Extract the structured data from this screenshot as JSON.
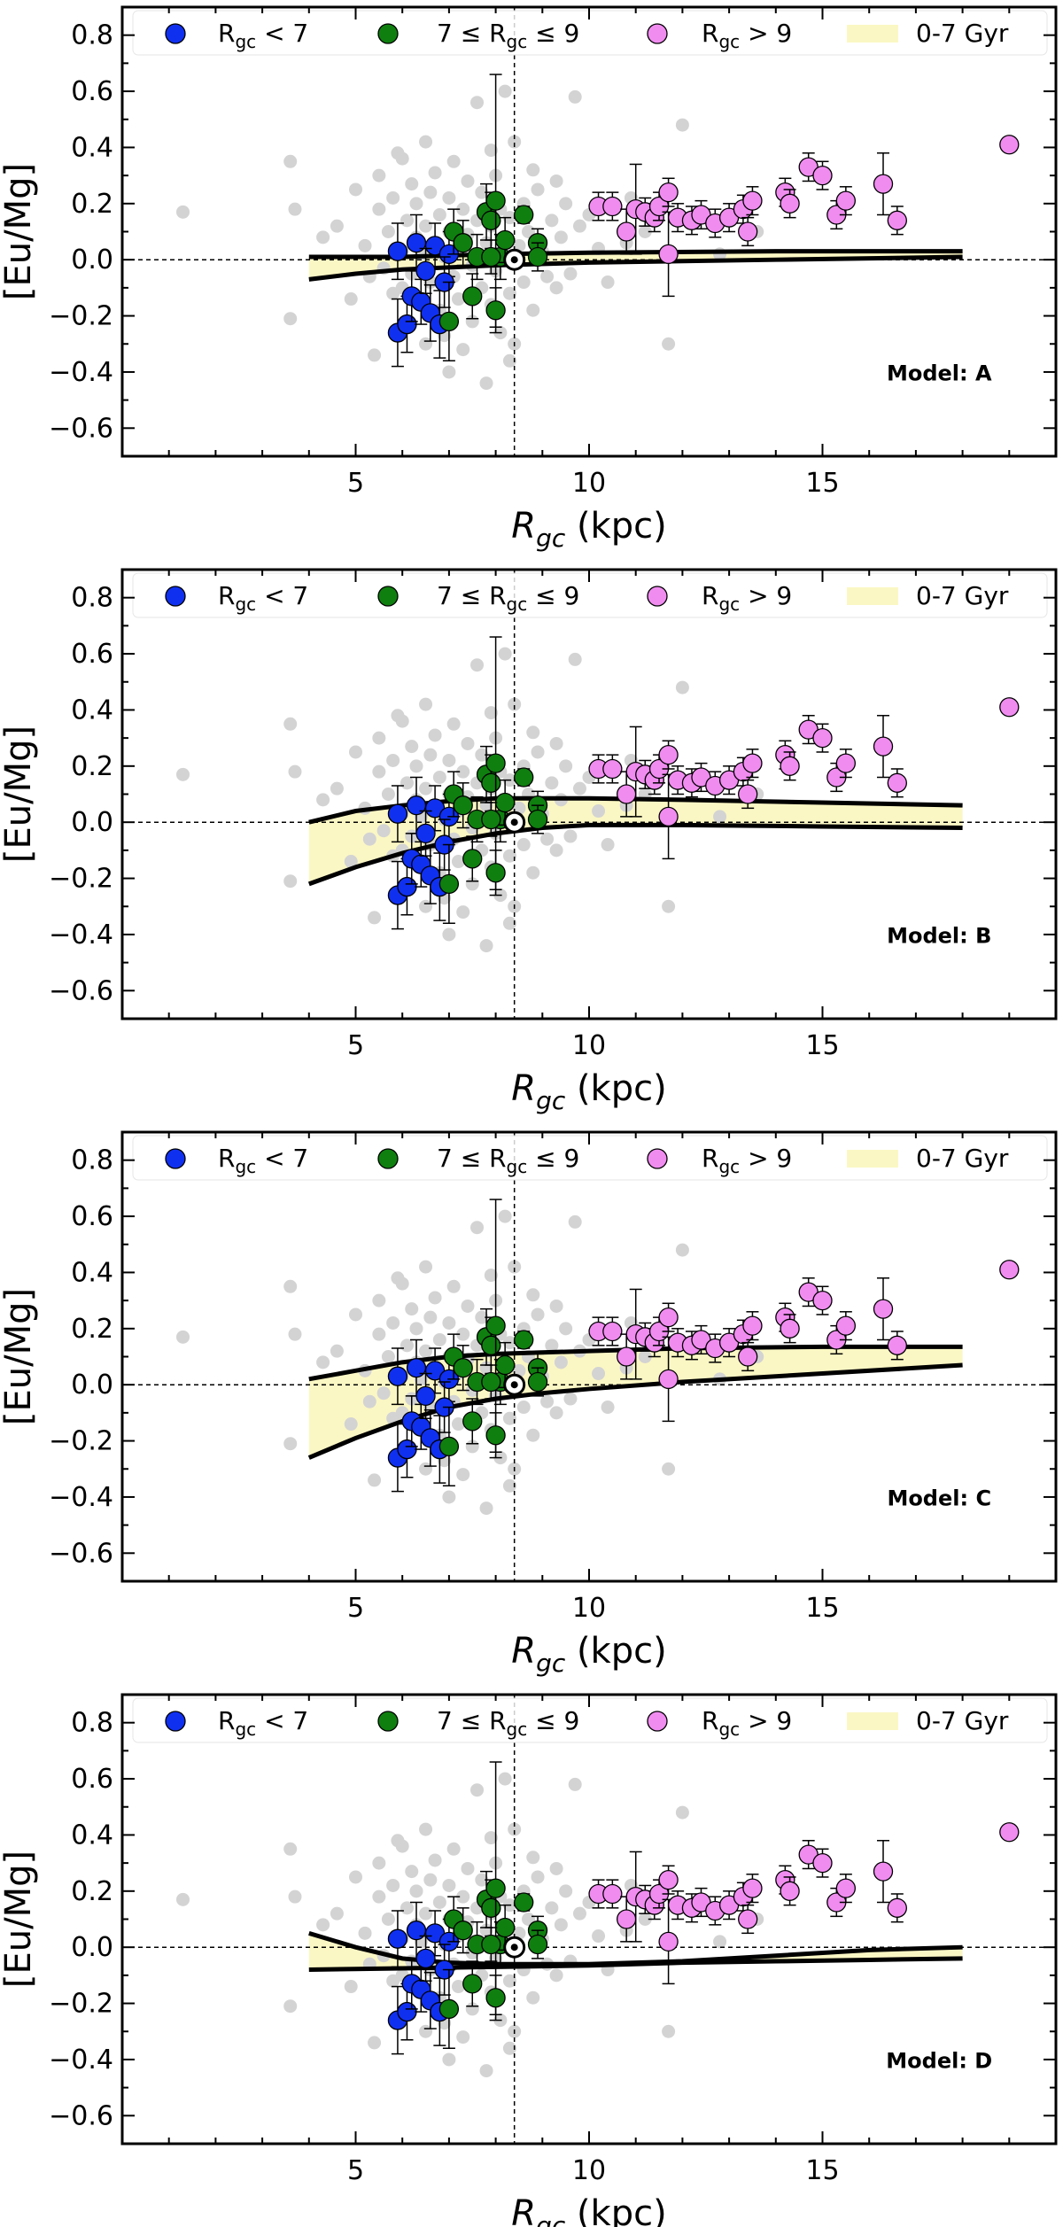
{
  "chart_data": [
    {
      "type": "scatter",
      "model": "Model: A",
      "xlabel_main": "R",
      "xlabel_sub": "gc",
      "xlabel_unit": " (kpc)",
      "ylabel": "[Eu/Mg]",
      "xlim": [
        0,
        20
      ],
      "ylim": [
        -0.7,
        0.9
      ],
      "xticks": [
        5,
        10,
        15
      ],
      "yticks": [
        -0.6,
        -0.4,
        -0.2,
        0.0,
        0.2,
        0.4,
        0.6,
        0.8
      ],
      "sun_rgc": 8.4,
      "band_upper": [
        [
          4,
          0.01
        ],
        [
          6,
          0.01
        ],
        [
          8,
          0.02
        ],
        [
          10,
          0.025
        ],
        [
          14,
          0.03
        ],
        [
          18,
          0.03
        ]
      ],
      "band_lower": [
        [
          4,
          -0.07
        ],
        [
          5,
          -0.05
        ],
        [
          6,
          -0.035
        ],
        [
          8,
          -0.02
        ],
        [
          10,
          -0.01
        ],
        [
          14,
          0.0
        ],
        [
          18,
          0.01
        ]
      ]
    },
    {
      "type": "scatter",
      "model": "Model: B",
      "xlabel_main": "R",
      "xlabel_sub": "gc",
      "xlabel_unit": " (kpc)",
      "ylabel": "[Eu/Mg]",
      "xlim": [
        0,
        20
      ],
      "ylim": [
        -0.7,
        0.9
      ],
      "xticks": [
        5,
        10,
        15
      ],
      "yticks": [
        -0.6,
        -0.4,
        -0.2,
        0.0,
        0.2,
        0.4,
        0.6,
        0.8
      ],
      "sun_rgc": 8.4,
      "band_upper": [
        [
          4,
          0.0
        ],
        [
          5,
          0.04
        ],
        [
          6,
          0.06
        ],
        [
          7,
          0.075
        ],
        [
          8,
          0.085
        ],
        [
          10,
          0.085
        ],
        [
          12,
          0.08
        ],
        [
          15,
          0.07
        ],
        [
          18,
          0.06
        ]
      ],
      "band_lower": [
        [
          4,
          -0.22
        ],
        [
          5,
          -0.16
        ],
        [
          6,
          -0.11
        ],
        [
          7,
          -0.07
        ],
        [
          8,
          -0.04
        ],
        [
          9,
          -0.02
        ],
        [
          10,
          -0.01
        ],
        [
          12,
          -0.01
        ],
        [
          15,
          -0.015
        ],
        [
          18,
          -0.02
        ]
      ]
    },
    {
      "type": "scatter",
      "model": "Model: C",
      "xlabel_main": "R",
      "xlabel_sub": "gc",
      "xlabel_unit": " (kpc)",
      "ylabel": "[Eu/Mg]",
      "xlim": [
        0,
        20
      ],
      "ylim": [
        -0.7,
        0.9
      ],
      "xticks": [
        5,
        10,
        15
      ],
      "yticks": [
        -0.6,
        -0.4,
        -0.2,
        0.0,
        0.2,
        0.4,
        0.6,
        0.8
      ],
      "sun_rgc": 8.4,
      "band_upper": [
        [
          4,
          0.02
        ],
        [
          5,
          0.05
        ],
        [
          6,
          0.08
        ],
        [
          7,
          0.1
        ],
        [
          8,
          0.11
        ],
        [
          10,
          0.12
        ],
        [
          12,
          0.13
        ],
        [
          15,
          0.135
        ],
        [
          18,
          0.135
        ]
      ],
      "band_lower": [
        [
          4,
          -0.26
        ],
        [
          5,
          -0.19
        ],
        [
          6,
          -0.13
        ],
        [
          7,
          -0.08
        ],
        [
          8,
          -0.05
        ],
        [
          9,
          -0.03
        ],
        [
          10,
          -0.015
        ],
        [
          12,
          0.01
        ],
        [
          15,
          0.04
        ],
        [
          18,
          0.07
        ]
      ]
    },
    {
      "type": "scatter",
      "model": "Model: D",
      "xlabel_main": "R",
      "xlabel_sub": "gc",
      "xlabel_unit": " (kpc)",
      "ylabel": "[Eu/Mg]",
      "xlim": [
        0,
        20
      ],
      "ylim": [
        -0.7,
        0.9
      ],
      "xticks": [
        5,
        10,
        15
      ],
      "yticks": [
        -0.6,
        -0.4,
        -0.2,
        0.0,
        0.2,
        0.4,
        0.6,
        0.8
      ],
      "sun_rgc": 8.4,
      "band_upper": [
        [
          4,
          0.05
        ],
        [
          5,
          0.0
        ],
        [
          6,
          -0.04
        ],
        [
          7,
          -0.055
        ],
        [
          8,
          -0.06
        ],
        [
          10,
          -0.06
        ],
        [
          12,
          -0.05
        ],
        [
          14,
          -0.03
        ],
        [
          16,
          -0.01
        ],
        [
          18,
          0.0
        ]
      ],
      "band_lower": [
        [
          4,
          -0.08
        ],
        [
          6,
          -0.075
        ],
        [
          8,
          -0.07
        ],
        [
          10,
          -0.065
        ],
        [
          12,
          -0.055
        ],
        [
          14,
          -0.05
        ],
        [
          16,
          -0.045
        ],
        [
          18,
          -0.04
        ]
      ]
    }
  ],
  "legend": {
    "blue_label": "R_gc < 7",
    "blue_main": "R",
    "blue_sub": "gc",
    "blue_rest": " < 7",
    "green_pre": "7 ≤ R",
    "green_sub": "gc",
    "green_rest": " ≤ 9",
    "pink_main": "R",
    "pink_sub": "gc",
    "pink_rest": " > 9",
    "band_label": "0-7 Gyr"
  },
  "colors": {
    "blue": "#1030f0",
    "green": "#0f7f0f",
    "pink": "#f08cf0",
    "gray": "#d3d3d3",
    "band": "#fbf7c4"
  },
  "series": {
    "gray_field": [
      [
        1.3,
        0.17
      ],
      [
        3.6,
        0.35
      ],
      [
        3.7,
        0.18
      ],
      [
        3.6,
        -0.21
      ],
      [
        4.3,
        0.08
      ],
      [
        4.6,
        0.12
      ],
      [
        4.9,
        -0.14
      ],
      [
        5.0,
        0.25
      ],
      [
        5.2,
        0.05
      ],
      [
        5.3,
        -0.06
      ],
      [
        5.5,
        0.3
      ],
      [
        5.5,
        0.18
      ],
      [
        5.6,
        -0.03
      ],
      [
        5.7,
        0.1
      ],
      [
        5.8,
        -0.12
      ],
      [
        5.8,
        0.22
      ],
      [
        5.9,
        0.38
      ],
      [
        6.0,
        0.03
      ],
      [
        6.0,
        -0.1
      ],
      [
        6.1,
        0.14
      ],
      [
        6.1,
        -0.22
      ],
      [
        6.2,
        0.27
      ],
      [
        6.2,
        -0.05
      ],
      [
        6.3,
        0.08
      ],
      [
        6.3,
        0.2
      ],
      [
        6.4,
        -0.15
      ],
      [
        6.4,
        0.02
      ],
      [
        6.5,
        0.12
      ],
      [
        6.5,
        -0.3
      ],
      [
        6.6,
        0.24
      ],
      [
        6.6,
        -0.08
      ],
      [
        6.7,
        0.05
      ],
      [
        6.7,
        0.31
      ],
      [
        6.8,
        -0.18
      ],
      [
        6.8,
        0.16
      ],
      [
        6.9,
        0.01
      ],
      [
        6.9,
        -0.27
      ],
      [
        7.0,
        0.1
      ],
      [
        7.0,
        0.22
      ],
      [
        7.1,
        -0.06
      ],
      [
        7.1,
        0.35
      ],
      [
        7.2,
        0.04
      ],
      [
        7.2,
        -0.14
      ],
      [
        7.3,
        0.18
      ],
      [
        7.3,
        -0.32
      ],
      [
        7.4,
        0.09
      ],
      [
        7.4,
        0.28
      ],
      [
        7.5,
        -0.02
      ],
      [
        7.5,
        -0.22
      ],
      [
        7.6,
        0.14
      ],
      [
        7.6,
        0.02
      ],
      [
        7.7,
        -0.1
      ],
      [
        7.7,
        0.24
      ],
      [
        7.8,
        0.06
      ],
      [
        7.8,
        -0.44
      ],
      [
        7.9,
        0.12
      ],
      [
        7.9,
        -0.16
      ],
      [
        8.0,
        0.3
      ],
      [
        8.0,
        -0.04
      ],
      [
        8.1,
        0.18
      ],
      [
        8.1,
        -0.26
      ],
      [
        8.2,
        0.08
      ],
      [
        8.2,
        0.6
      ],
      [
        8.3,
        -0.12
      ],
      [
        8.3,
        0.15
      ],
      [
        8.4,
        0.42
      ],
      [
        8.4,
        -0.3
      ],
      [
        8.5,
        0.05
      ],
      [
        8.6,
        -0.08
      ],
      [
        8.6,
        0.2
      ],
      [
        8.7,
        0.1
      ],
      [
        8.8,
        -0.18
      ],
      [
        8.9,
        0.25
      ],
      [
        9.0,
        0.03
      ],
      [
        9.1,
        -0.06
      ],
      [
        9.2,
        0.14
      ],
      [
        9.3,
        -0.1
      ],
      [
        9.4,
        0.08
      ],
      [
        9.5,
        0.2
      ],
      [
        9.6,
        -0.05
      ],
      [
        9.7,
        0.58
      ],
      [
        9.8,
        0.12
      ],
      [
        10.2,
        0.04
      ],
      [
        10.4,
        -0.08
      ],
      [
        10.8,
        0.06
      ],
      [
        10.9,
        0.22
      ],
      [
        11.2,
        0.1
      ],
      [
        11.7,
        -0.3
      ],
      [
        12.0,
        0.48
      ],
      [
        12.3,
        0.14
      ],
      [
        12.8,
        0.02
      ],
      [
        13.6,
        0.1
      ],
      [
        6.5,
        0.42
      ],
      [
        7.0,
        -0.4
      ],
      [
        7.6,
        0.56
      ],
      [
        8.3,
        -0.36
      ],
      [
        5.4,
        -0.34
      ],
      [
        6.0,
        0.36
      ],
      [
        7.9,
        0.39
      ],
      [
        8.8,
        0.32
      ],
      [
        9.3,
        0.28
      ],
      [
        10.0,
        0.16
      ]
    ],
    "blue": [
      [
        5.9,
        0.03,
        0.1
      ],
      [
        6.3,
        0.06,
        0.1
      ],
      [
        6.7,
        0.05,
        0.08
      ],
      [
        7.0,
        0.02,
        0.08
      ],
      [
        5.9,
        -0.26,
        0.12
      ],
      [
        6.1,
        -0.23,
        0.1
      ],
      [
        6.2,
        -0.13,
        0.09
      ],
      [
        6.4,
        -0.15,
        0.08
      ],
      [
        6.6,
        -0.19,
        0.1
      ],
      [
        6.8,
        -0.23,
        0.12
      ],
      [
        6.9,
        -0.08,
        0.09
      ],
      [
        6.5,
        -0.04,
        0.08
      ]
    ],
    "green": [
      [
        7.1,
        0.1,
        0.08
      ],
      [
        7.3,
        0.06,
        0.08
      ],
      [
        7.6,
        0.01,
        0.08
      ],
      [
        7.8,
        0.17,
        0.1
      ],
      [
        7.9,
        0.14,
        0.1
      ],
      [
        8.0,
        0.21,
        0.45
      ],
      [
        8.1,
        0.01,
        0.08
      ],
      [
        8.2,
        0.07,
        0.08
      ],
      [
        8.6,
        0.16,
        0.03
      ],
      [
        8.9,
        0.06,
        0.05
      ],
      [
        8.9,
        0.01,
        0.05
      ],
      [
        7.5,
        -0.13,
        0.08
      ],
      [
        8.0,
        -0.18,
        0.08
      ],
      [
        7.0,
        -0.22,
        0.14
      ],
      [
        7.9,
        0.01,
        0.06
      ]
    ],
    "pink": [
      [
        10.2,
        0.19,
        0.05
      ],
      [
        10.5,
        0.19,
        0.05
      ],
      [
        10.8,
        0.1,
        0.08
      ],
      [
        11.0,
        0.18,
        0.16
      ],
      [
        11.2,
        0.17,
        0.05
      ],
      [
        11.4,
        0.15,
        0.05
      ],
      [
        11.5,
        0.19,
        0.05
      ],
      [
        11.7,
        0.24,
        0.05
      ],
      [
        11.7,
        0.02,
        0.15
      ],
      [
        11.9,
        0.15,
        0.05
      ],
      [
        12.2,
        0.14,
        0.05
      ],
      [
        12.4,
        0.16,
        0.05
      ],
      [
        12.7,
        0.13,
        0.05
      ],
      [
        13.0,
        0.15,
        0.05
      ],
      [
        13.3,
        0.18,
        0.05
      ],
      [
        13.4,
        0.1,
        0.05
      ],
      [
        13.5,
        0.21,
        0.05
      ],
      [
        14.2,
        0.24,
        0.05
      ],
      [
        14.3,
        0.2,
        0.05
      ],
      [
        14.7,
        0.33,
        0.05
      ],
      [
        15.0,
        0.3,
        0.05
      ],
      [
        15.3,
        0.16,
        0.05
      ],
      [
        15.5,
        0.21,
        0.05
      ],
      [
        16.3,
        0.27,
        0.11
      ],
      [
        16.6,
        0.14,
        0.05
      ],
      [
        19.0,
        0.41,
        0.0
      ]
    ]
  }
}
